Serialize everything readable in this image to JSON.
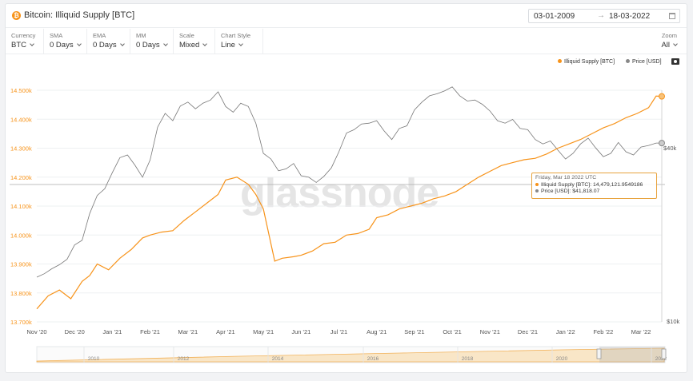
{
  "header": {
    "icon": "bitcoin-icon",
    "title": "Bitcoin: Illiquid Supply [BTC]",
    "date_from": "03-01-2009",
    "date_arrow": "→",
    "date_to": "18-03-2022"
  },
  "controls": [
    {
      "label": "Currency",
      "value": "BTC"
    },
    {
      "label": "SMA",
      "value": "0 Days"
    },
    {
      "label": "EMA",
      "value": "0 Days"
    },
    {
      "label": "MM",
      "value": "0 Days"
    },
    {
      "label": "Scale",
      "value": "Mixed"
    },
    {
      "label": "Chart Style",
      "value": "Line"
    }
  ],
  "zoom": {
    "label": "Zoom",
    "value": "All"
  },
  "watermark": "glassnode",
  "chart_data": {
    "type": "line",
    "x_ticks": [
      "Nov '20",
      "Dec '20",
      "Jan '21",
      "Feb '21",
      "Mar '21",
      "Apr '21",
      "May '21",
      "Jun '21",
      "Jul '21",
      "Aug '21",
      "Sep '21",
      "Oct '21",
      "Nov '21",
      "Dec '21",
      "Jan '22",
      "Feb '22",
      "Mar '22"
    ],
    "y_left_ticks": [
      "14.500k",
      "14.400k",
      "14.300k",
      "14.200k",
      "14.100k",
      "14.000k",
      "13.900k",
      "13.800k",
      "13.700k"
    ],
    "y_left_range": [
      13700,
      14500
    ],
    "y_right_ticks": [
      "$40k",
      "$10k"
    ],
    "series": [
      {
        "name": "Illiquid Supply [BTC]",
        "color": "#f7931a",
        "axis": "left",
        "x": [
          0,
          0.3,
          0.6,
          0.9,
          1.2,
          1.4,
          1.6,
          1.9,
          2.2,
          2.5,
          2.8,
          3.0,
          3.3,
          3.6,
          3.9,
          4.2,
          4.5,
          4.8,
          5.0,
          5.3,
          5.6,
          5.8,
          6.0,
          6.3,
          6.5,
          6.8,
          7.0,
          7.3,
          7.6,
          7.9,
          8.2,
          8.5,
          8.8,
          9.0,
          9.3,
          9.6,
          9.9,
          10.2,
          10.5,
          10.8,
          11.1,
          11.4,
          11.7,
          12.0,
          12.3,
          12.6,
          12.9,
          13.2,
          13.5,
          13.8,
          14.1,
          14.4,
          14.7,
          15.0,
          15.3,
          15.6,
          15.9,
          16.2,
          16.4,
          16.55
        ],
        "y": [
          13745,
          13790,
          13810,
          13780,
          13840,
          13860,
          13900,
          13880,
          13920,
          13950,
          13990,
          14000,
          14010,
          14015,
          14050,
          14080,
          14110,
          14140,
          14190,
          14200,
          14175,
          14140,
          14090,
          13910,
          13920,
          13925,
          13930,
          13945,
          13970,
          13975,
          14000,
          14005,
          14020,
          14060,
          14070,
          14090,
          14100,
          14110,
          14125,
          14135,
          14150,
          14175,
          14200,
          14220,
          14240,
          14250,
          14260,
          14265,
          14280,
          14300,
          14315,
          14330,
          14350,
          14370,
          14385,
          14405,
          14420,
          14440,
          14480,
          14479
        ]
      },
      {
        "name": "Price [USD]",
        "color": "#666666",
        "axis": "right",
        "x": [
          0,
          0.2,
          0.4,
          0.6,
          0.8,
          1.0,
          1.2,
          1.4,
          1.6,
          1.8,
          2.0,
          2.2,
          2.4,
          2.6,
          2.8,
          3.0,
          3.2,
          3.4,
          3.6,
          3.8,
          4.0,
          4.2,
          4.4,
          4.6,
          4.8,
          5.0,
          5.2,
          5.4,
          5.6,
          5.8,
          6.0,
          6.2,
          6.4,
          6.6,
          6.8,
          7.0,
          7.2,
          7.4,
          7.6,
          7.8,
          8.0,
          8.2,
          8.4,
          8.6,
          8.8,
          9.0,
          9.2,
          9.4,
          9.6,
          9.8,
          10.0,
          10.2,
          10.4,
          10.6,
          10.8,
          11.0,
          11.2,
          11.4,
          11.6,
          11.8,
          12.0,
          12.2,
          12.4,
          12.6,
          12.8,
          13.0,
          13.2,
          13.4,
          13.6,
          13.8,
          14.0,
          14.2,
          14.4,
          14.6,
          14.8,
          15.0,
          15.2,
          15.4,
          15.6,
          15.8,
          16.0,
          16.2,
          16.4,
          16.55
        ],
        "y": [
          14.3,
          14.7,
          15.3,
          15.8,
          16.5,
          18.5,
          19.2,
          23.8,
          27.5,
          29.0,
          33.0,
          37.2,
          38.0,
          35.0,
          31.8,
          36.5,
          47.5,
          53.0,
          50.0,
          56.2,
          58.0,
          55.0,
          57.5,
          59.0,
          63.0,
          56.0,
          53.5,
          57.5,
          56.0,
          49.0,
          38.5,
          36.8,
          33.5,
          34.0,
          35.5,
          32.2,
          31.8,
          30.5,
          32.0,
          34.3,
          39.0,
          45.3,
          46.5,
          48.7,
          49.0,
          50.0,
          46.0,
          43.0,
          47.0,
          48.0,
          54.5,
          58.0,
          61.0,
          62.0,
          63.5,
          65.5,
          61.0,
          58.5,
          59.0,
          57.0,
          54.0,
          50.0,
          49.0,
          50.5,
          47.0,
          46.5,
          43.0,
          41.5,
          42.5,
          39.5,
          36.8,
          38.5,
          41.5,
          43.5,
          40.2,
          37.5,
          38.5,
          42.0,
          39.0,
          38.0,
          40.5,
          41.0,
          41.8,
          41.8
        ]
      }
    ],
    "tooltip": {
      "date": "Friday, Mar 18 2022 UTC",
      "row1": "Illiquid Supply [BTC]: 14,479,121.9549186",
      "row2": "Price [USD]: $41,818.07"
    },
    "navigator_ticks": [
      "2010",
      "2012",
      "2014",
      "2016",
      "2018",
      "2020",
      "2022"
    ]
  }
}
